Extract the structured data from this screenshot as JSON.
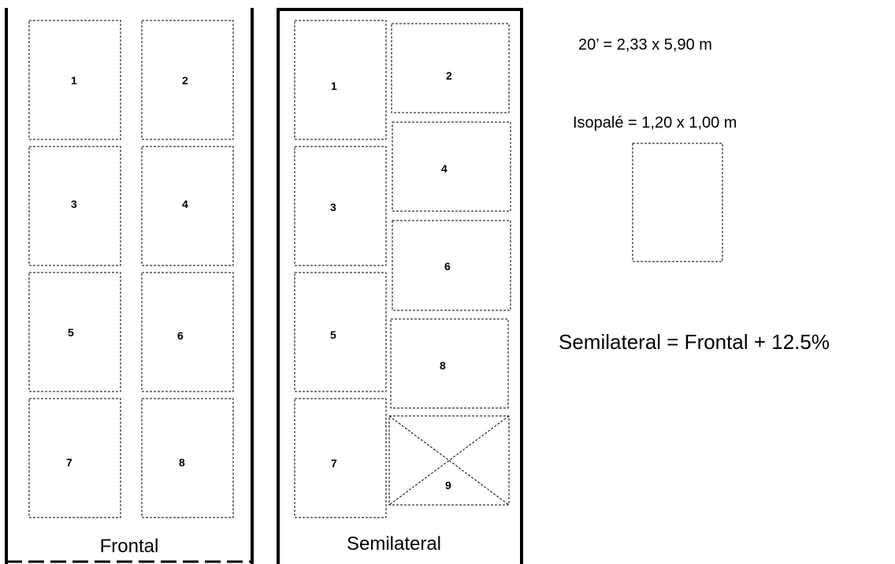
{
  "frontal": {
    "caption": "Frontal",
    "pallets": [
      "1",
      "2",
      "3",
      "4",
      "5",
      "6",
      "7",
      "8"
    ]
  },
  "semilateral": {
    "caption": "Semilateral",
    "pallets": [
      "1",
      "2",
      "3",
      "4",
      "5",
      "6",
      "7",
      "8",
      "9"
    ],
    "excluded_pallet": "9"
  },
  "container_note": "20’ = 2,33 x 5,90 m",
  "pallet_note": "Isopalé = 1,20 x 1,00 m",
  "formula": "Semilateral = Frontal + 12.5%"
}
